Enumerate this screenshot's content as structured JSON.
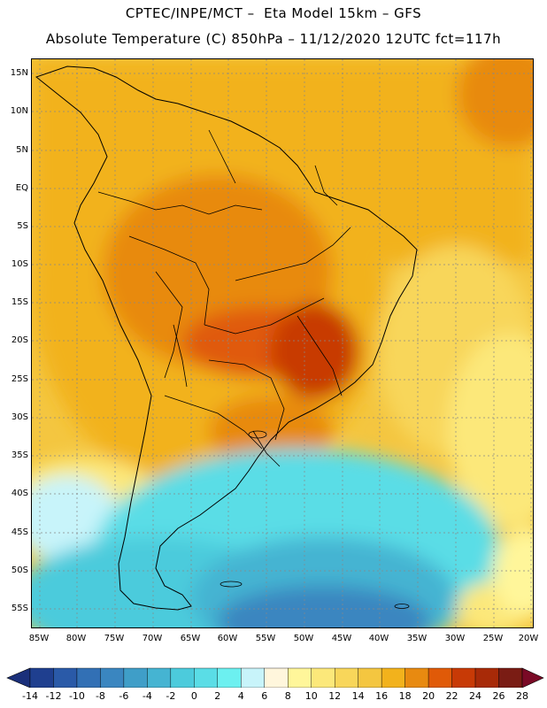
{
  "header": {
    "line1": "CPTEC/INPE/MCT –  Eta Model 15km – GFS",
    "line2": "Absolute Temperature (C) 850hPa – 11/12/2020 12UTC fct=117h"
  },
  "map": {
    "lat_labels": [
      "15N",
      "10N",
      "5N",
      "EQ",
      "5S",
      "10S",
      "15S",
      "20S",
      "25S",
      "30S",
      "35S",
      "40S",
      "45S",
      "50S",
      "55S"
    ],
    "lon_labels": [
      "85W",
      "80W",
      "75W",
      "70W",
      "65W",
      "60W",
      "55W",
      "50W",
      "45W",
      "40W",
      "35W",
      "30W",
      "25W",
      "20W"
    ]
  },
  "colorbar": {
    "labels": [
      "-14",
      "-12",
      "-10",
      "-8",
      "-6",
      "-4",
      "-2",
      "0",
      "2",
      "4",
      "6",
      "8",
      "10",
      "12",
      "14",
      "16",
      "18",
      "20",
      "22",
      "24",
      "26",
      "28"
    ],
    "colors": [
      "#1f3f8f",
      "#2a5aa8",
      "#3270b5",
      "#3a86c0",
      "#3f9ec8",
      "#45b4d2",
      "#4ccbdc",
      "#5adde6",
      "#6cf0f0",
      "#c8f4fa",
      "#fff6dc",
      "#fff69a",
      "#fce87a",
      "#f8d65a",
      "#f4c640",
      "#f2b21c",
      "#e88a10",
      "#e05a08",
      "#c83a06",
      "#a82a08",
      "#7a1c14"
    ],
    "under_color": "#1a2f7a",
    "over_color": "#7a0a26"
  }
}
